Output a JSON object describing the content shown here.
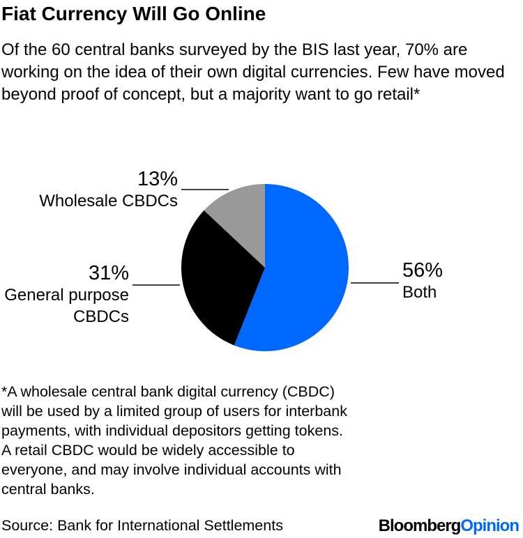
{
  "chart_data": {
    "type": "pie",
    "title": "Fiat Currency Will Go Online",
    "subtitle": "Of the 60 central banks surveyed by the BIS last year, 70% are working on the idea of their own digital currencies. Few have moved beyond proof of concept, but a majority want to go retail*",
    "categories": [
      "Both",
      "General purpose CBDCs",
      "Wholesale CBDCs"
    ],
    "values": [
      56,
      31,
      13
    ],
    "value_labels": [
      "56%",
      "31%",
      "13%"
    ],
    "colors": [
      "#0068ff",
      "#000000",
      "#999999"
    ],
    "footnote": "*A wholesale central bank digital currency (CBDC) will be used by a limited group of users for interbank payments, with individual depositors getting tokens. A retail CBDC would be widely accessible to everyone, and may involve individual accounts with central banks.",
    "source": "Source: Bank for International Settlements",
    "logo": [
      "Bloomberg",
      "Opinion"
    ]
  }
}
